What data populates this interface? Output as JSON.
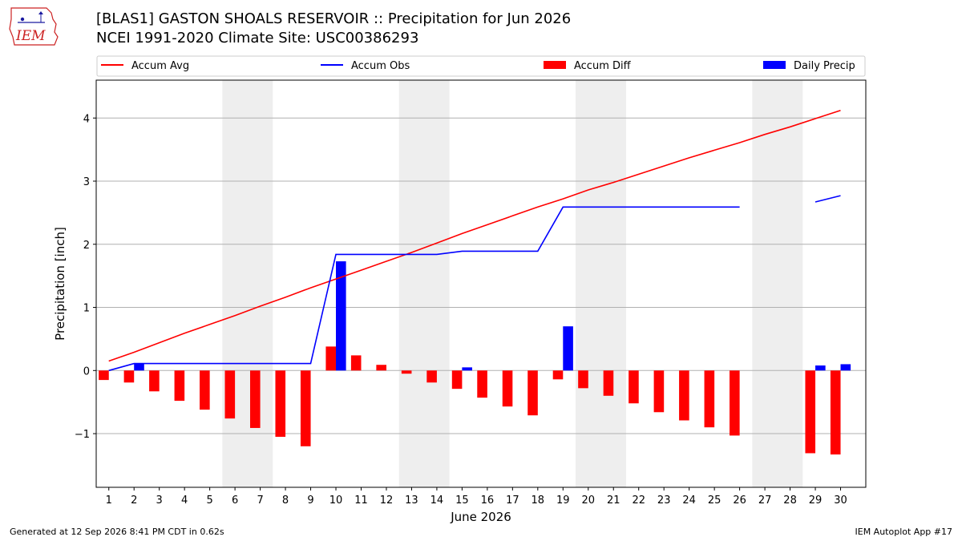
{
  "header": {
    "logo_text": "IEM",
    "title_line1": "[BLAS1] GASTON SHOALS RESERVOIR :: Precipitation for Jun 2026",
    "title_line2": "NCEI 1991-2020 Climate Site: USC00386293"
  },
  "footer": {
    "generated": "Generated at 12 Sep 2026 8:41 PM CDT in 0.62s",
    "app": "IEM Autoplot App #17"
  },
  "colors": {
    "accum_avg": "#ff0000",
    "accum_obs": "#0000ff",
    "accum_diff": "#ff0000",
    "daily_precip": "#0000ff",
    "weekend_shade": "#eeeeee",
    "grid": "#b0b0b0"
  },
  "chart_data": {
    "type": "bar",
    "xlabel": "June 2026",
    "ylabel": "Precipitation [inch]",
    "ylim": [
      -1.85,
      4.6
    ],
    "yticks": [
      -1,
      0,
      1,
      2,
      3,
      4
    ],
    "ytick_labels": [
      "−1",
      "0",
      "1",
      "2",
      "3",
      "4"
    ],
    "grid": "horizontal",
    "legend_position": "top",
    "x": [
      1,
      2,
      3,
      4,
      5,
      6,
      7,
      8,
      9,
      10,
      11,
      12,
      13,
      14,
      15,
      16,
      17,
      18,
      19,
      20,
      21,
      22,
      23,
      24,
      25,
      26,
      27,
      28,
      29,
      30
    ],
    "shaded_weekends": [
      [
        6,
        7
      ],
      [
        13,
        14
      ],
      [
        20,
        21
      ],
      [
        27,
        28
      ]
    ],
    "series": [
      {
        "name": "Accum Avg",
        "kind": "line",
        "values": [
          0.15,
          0.29,
          0.44,
          0.59,
          0.73,
          0.87,
          1.02,
          1.16,
          1.31,
          1.45,
          1.59,
          1.73,
          1.87,
          2.02,
          2.17,
          2.31,
          2.45,
          2.59,
          2.72,
          2.86,
          2.98,
          3.11,
          3.24,
          3.37,
          3.49,
          3.61,
          3.74,
          3.86,
          3.99,
          4.12
        ]
      },
      {
        "name": "Accum Obs",
        "kind": "line",
        "values": [
          0.0,
          0.11,
          0.11,
          0.11,
          0.11,
          0.11,
          0.11,
          0.11,
          0.11,
          1.84,
          1.84,
          1.84,
          1.84,
          1.84,
          1.89,
          1.89,
          1.89,
          1.89,
          2.59,
          2.59,
          2.59,
          2.59,
          2.59,
          2.59,
          2.59,
          2.59,
          null,
          null,
          2.67,
          2.77
        ]
      },
      {
        "name": "Accum Diff",
        "kind": "bar",
        "values": [
          -0.15,
          -0.19,
          -0.33,
          -0.48,
          -0.62,
          -0.76,
          -0.91,
          -1.05,
          -1.2,
          0.38,
          0.24,
          0.09,
          -0.05,
          -0.19,
          -0.29,
          -0.43,
          -0.57,
          -0.71,
          -0.14,
          -0.28,
          -0.4,
          -0.52,
          -0.66,
          -0.79,
          -0.9,
          -1.03,
          null,
          null,
          -1.31,
          -1.33
        ]
      },
      {
        "name": "Daily Precip",
        "kind": "bar",
        "values": [
          0,
          0.11,
          0,
          0,
          0,
          0,
          0,
          0,
          0,
          1.73,
          0,
          0,
          0,
          0,
          0.05,
          0,
          0,
          0,
          0.7,
          0,
          0,
          0,
          0,
          0,
          0,
          0,
          null,
          null,
          0.08,
          0.1
        ]
      }
    ]
  }
}
